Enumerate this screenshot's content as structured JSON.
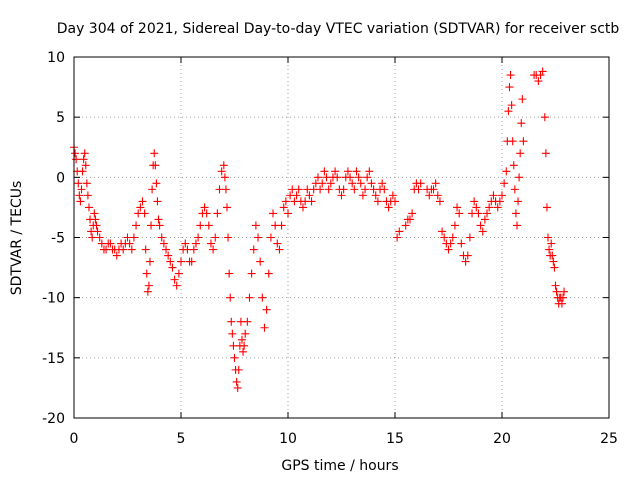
{
  "chart_data": {
    "type": "scatter",
    "title": "Day 304 of 2021, Sidereal Day-to-day VTEC variation (SDTVAR) for receiver sctb",
    "xlabel": "GPS time / hours",
    "ylabel": "SDTVAR / TECUs",
    "xlim": [
      0,
      25
    ],
    "ylim": [
      -20,
      10
    ],
    "xticks": [
      "0",
      "5",
      "10",
      "15",
      "20",
      "25"
    ],
    "yticks": [
      "10",
      "5",
      "0",
      "-5",
      "-10",
      "-15",
      "-20"
    ],
    "xtick_values": [
      0,
      5,
      10,
      15,
      20,
      25
    ],
    "ytick_values": [
      10,
      5,
      0,
      -5,
      -10,
      -15,
      -20
    ],
    "grid": true,
    "marker": "+",
    "series": [
      {
        "name": "sctb",
        "color": "#ff0000",
        "x": [
          0.0,
          0.05,
          0.1,
          0.15,
          0.2,
          0.25,
          0.3,
          0.35,
          0.4,
          0.45,
          0.5,
          0.55,
          0.6,
          0.65,
          0.7,
          0.75,
          0.8,
          0.85,
          0.9,
          0.95,
          1.0,
          1.05,
          1.1,
          1.2,
          1.3,
          1.4,
          1.5,
          1.6,
          1.7,
          1.8,
          1.9,
          2.0,
          2.1,
          2.2,
          2.3,
          2.4,
          2.5,
          2.6,
          2.7,
          2.8,
          2.9,
          3.0,
          3.1,
          3.2,
          3.3,
          3.35,
          3.4,
          3.45,
          3.5,
          3.55,
          3.6,
          3.65,
          3.7,
          3.75,
          3.8,
          3.85,
          3.9,
          3.95,
          4.0,
          4.1,
          4.2,
          4.3,
          4.4,
          4.5,
          4.6,
          4.7,
          4.8,
          4.9,
          5.0,
          5.1,
          5.2,
          5.3,
          5.4,
          5.5,
          5.6,
          5.7,
          5.8,
          5.9,
          6.0,
          6.1,
          6.2,
          6.3,
          6.4,
          6.5,
          6.6,
          6.7,
          6.8,
          6.9,
          7.0,
          7.05,
          7.1,
          7.15,
          7.2,
          7.25,
          7.3,
          7.35,
          7.4,
          7.45,
          7.5,
          7.55,
          7.6,
          7.65,
          7.7,
          7.75,
          7.8,
          7.85,
          7.9,
          7.95,
          8.0,
          8.1,
          8.2,
          8.3,
          8.4,
          8.5,
          8.6,
          8.7,
          8.8,
          8.9,
          9.0,
          9.1,
          9.2,
          9.3,
          9.4,
          9.5,
          9.6,
          9.7,
          9.8,
          9.9,
          10.0,
          10.1,
          10.2,
          10.3,
          10.4,
          10.5,
          10.6,
          10.7,
          10.8,
          10.9,
          11.0,
          11.1,
          11.2,
          11.3,
          11.4,
          11.5,
          11.6,
          11.7,
          11.8,
          11.9,
          12.0,
          12.1,
          12.2,
          12.3,
          12.4,
          12.5,
          12.6,
          12.7,
          12.8,
          12.9,
          13.0,
          13.1,
          13.2,
          13.3,
          13.4,
          13.5,
          13.6,
          13.7,
          13.8,
          13.9,
          14.0,
          14.1,
          14.2,
          14.3,
          14.4,
          14.5,
          14.6,
          14.7,
          14.8,
          14.9,
          15.0,
          15.1,
          15.2,
          15.5,
          15.6,
          15.7,
          15.8,
          15.9,
          16.0,
          16.1,
          16.2,
          16.5,
          16.6,
          16.7,
          16.8,
          16.9,
          17.0,
          17.1,
          17.2,
          17.3,
          17.4,
          17.5,
          17.6,
          17.7,
          17.8,
          17.9,
          18.0,
          18.1,
          18.2,
          18.3,
          18.4,
          18.5,
          18.6,
          18.7,
          18.8,
          18.9,
          19.0,
          19.1,
          19.2,
          19.3,
          19.4,
          19.5,
          19.6,
          19.7,
          19.8,
          19.9,
          20.0,
          20.1,
          20.2,
          20.25,
          20.3,
          20.35,
          20.4,
          20.45,
          20.5,
          20.55,
          20.6,
          20.65,
          20.7,
          20.75,
          20.8,
          20.85,
          20.9,
          20.95,
          21.0,
          21.5,
          21.6,
          21.7,
          21.8,
          21.9,
          22.0,
          22.05,
          22.1,
          22.15,
          22.2,
          22.25,
          22.3,
          22.35,
          22.4,
          22.45,
          22.5,
          22.55,
          22.6,
          22.65,
          22.7,
          22.75,
          22.8,
          22.85,
          22.9
        ],
        "y": [
          2.5,
          2.0,
          1.5,
          0.5,
          -0.5,
          -1.5,
          -2.0,
          -1.0,
          0.5,
          1.5,
          2.0,
          1.0,
          -0.5,
          -1.5,
          -2.5,
          -3.5,
          -4.5,
          -5.0,
          -4.0,
          -3.0,
          -3.5,
          -4.0,
          -4.5,
          -5.0,
          -5.5,
          -6.0,
          -6.0,
          -5.5,
          -5.5,
          -6.0,
          -6.0,
          -6.5,
          -6.0,
          -5.5,
          -6.0,
          -5.5,
          -5.0,
          -5.5,
          -6.0,
          -5.0,
          -4.0,
          -3.0,
          -2.5,
          -2.0,
          -3.0,
          -6.0,
          -8.0,
          -9.5,
          -9.0,
          -7.0,
          -4.0,
          -1.0,
          1.0,
          2.0,
          1.0,
          -0.5,
          -2.0,
          -3.5,
          -4.0,
          -5.0,
          -5.5,
          -6.0,
          -6.5,
          -7.0,
          -7.5,
          -8.5,
          -9.0,
          -8.0,
          -7.0,
          -6.0,
          -5.5,
          -6.0,
          -7.0,
          -7.0,
          -6.0,
          -5.5,
          -5.0,
          -4.0,
          -3.0,
          -2.5,
          -3.0,
          -4.0,
          -5.5,
          -6.0,
          -5.0,
          -3.0,
          -1.0,
          0.5,
          1.0,
          0.0,
          -1.0,
          -2.5,
          -5.0,
          -8.0,
          -10.0,
          -12.0,
          -13.0,
          -14.0,
          -15.0,
          -16.0,
          -17.0,
          -17.5,
          -16.0,
          -14.0,
          -12.0,
          -13.5,
          -14.5,
          -14.0,
          -13.0,
          -12.0,
          -10.0,
          -8.0,
          -6.0,
          -4.0,
          -5.0,
          -7.0,
          -10.0,
          -12.5,
          -11.0,
          -8.0,
          -5.0,
          -3.0,
          -4.0,
          -5.5,
          -6.0,
          -4.0,
          -2.5,
          -2.0,
          -3.0,
          -1.5,
          -1.0,
          -2.0,
          -1.5,
          -1.0,
          -2.0,
          -2.5,
          -2.0,
          -1.0,
          -1.5,
          -2.0,
          -1.0,
          -0.5,
          0.0,
          -1.0,
          -0.5,
          0.5,
          0.0,
          -1.0,
          -0.5,
          0.0,
          0.5,
          0.0,
          -1.0,
          -1.5,
          -1.0,
          0.0,
          0.5,
          0.0,
          -0.5,
          -1.0,
          0.5,
          0.0,
          -0.5,
          -1.5,
          -1.0,
          0.0,
          0.5,
          -0.5,
          -1.0,
          -1.5,
          -2.0,
          -1.0,
          -0.5,
          -1.0,
          -2.0,
          -2.5,
          -2.0,
          -1.5,
          -2.0,
          -5.0,
          -4.5,
          -4.0,
          -3.5,
          -3.5,
          -3.0,
          -1.0,
          -0.5,
          -1.0,
          -0.5,
          -1.0,
          -1.5,
          -1.0,
          -1.0,
          -0.5,
          -1.5,
          -2.0,
          -4.5,
          -5.0,
          -5.5,
          -6.0,
          -5.5,
          -5.0,
          -4.0,
          -2.5,
          -3.0,
          -5.5,
          -6.5,
          -7.0,
          -6.5,
          -5.0,
          -3.0,
          -2.0,
          -2.5,
          -3.0,
          -4.0,
          -4.5,
          -3.5,
          -3.0,
          -2.5,
          -2.0,
          -1.5,
          -2.0,
          -2.5,
          -2.0,
          -1.5,
          -0.5,
          0.5,
          3.0,
          5.5,
          7.5,
          8.5,
          6.0,
          3.0,
          1.0,
          -1.0,
          -3.0,
          -4.0,
          -2.0,
          0.0,
          2.0,
          4.5,
          6.5,
          3.0,
          8.5,
          8.5,
          8.0,
          8.5,
          8.8,
          5.0,
          2.0,
          -2.5,
          -5.0,
          -6.0,
          -6.5,
          -5.5,
          -6.5,
          -7.0,
          -7.5,
          -9.0,
          -9.5,
          -10.0,
          -10.5,
          -10.0,
          -10.0,
          -10.5,
          -10.0,
          -9.5
        ]
      }
    ]
  }
}
